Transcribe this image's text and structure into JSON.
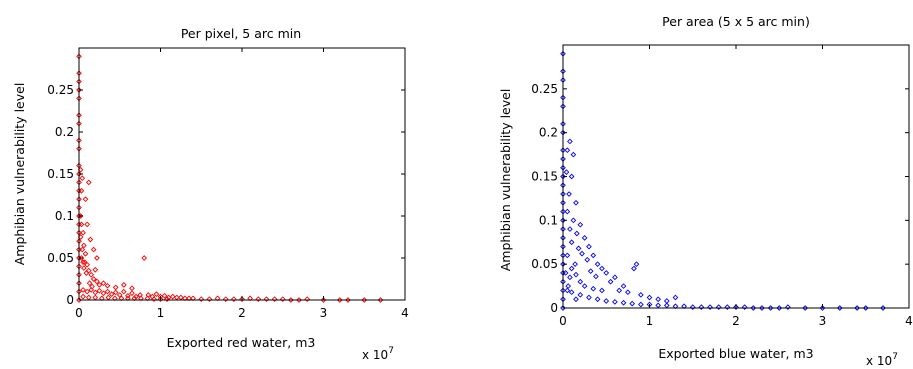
{
  "chart_data": [
    {
      "type": "scatter",
      "title": "Per pixel, 5 arc min",
      "xlabel": "Exported red water, m3",
      "ylabel": "Amphibian vulnerability level",
      "x_multiplier": "x 10",
      "x_exponent": "7",
      "xlim": [
        0,
        4
      ],
      "ylim": [
        0,
        0.3
      ],
      "xticks": [
        "0",
        "1",
        "2",
        "3",
        "4"
      ],
      "yticks": [
        "0",
        "0.05",
        "0.1",
        "0.15",
        "0.2",
        "0.25"
      ],
      "ytick_values": [
        0,
        0.05,
        0.1,
        0.15,
        0.2,
        0.25
      ],
      "marker": "diamond",
      "color": "#ff0000",
      "series": [
        {
          "points": [
            [
              0.0,
              0.29
            ],
            [
              0.0,
              0.27
            ],
            [
              0.0,
              0.26
            ],
            [
              0.0,
              0.25
            ],
            [
              0.0,
              0.24
            ],
            [
              0.0,
              0.22
            ],
            [
              0.0,
              0.21
            ],
            [
              0.0,
              0.19
            ],
            [
              0.0,
              0.18
            ],
            [
              0.0,
              0.16
            ],
            [
              0.0,
              0.15
            ],
            [
              0.0,
              0.14
            ],
            [
              0.0,
              0.13
            ],
            [
              0.0,
              0.12
            ],
            [
              0.0,
              0.11
            ],
            [
              0.0,
              0.1
            ],
            [
              0.0,
              0.09
            ],
            [
              0.0,
              0.08
            ],
            [
              0.0,
              0.07
            ],
            [
              0.0,
              0.06
            ],
            [
              0.0,
              0.05
            ],
            [
              0.0,
              0.04
            ],
            [
              0.0,
              0.03
            ],
            [
              0.0,
              0.02
            ],
            [
              0.0,
              0.01
            ],
            [
              0.0,
              0.0
            ],
            [
              0.02,
              0.155
            ],
            [
              0.03,
              0.13
            ],
            [
              0.04,
              0.145
            ],
            [
              0.02,
              0.1
            ],
            [
              0.03,
              0.09
            ],
            [
              0.05,
              0.08
            ],
            [
              0.02,
              0.075
            ],
            [
              0.06,
              0.065
            ],
            [
              0.04,
              0.06
            ],
            [
              0.08,
              0.055
            ],
            [
              0.03,
              0.05
            ],
            [
              0.05,
              0.045
            ],
            [
              0.07,
              0.045
            ],
            [
              0.1,
              0.042
            ],
            [
              0.06,
              0.038
            ],
            [
              0.12,
              0.035
            ],
            [
              0.09,
              0.032
            ],
            [
              0.15,
              0.03
            ],
            [
              0.2,
              0.036
            ],
            [
              0.18,
              0.025
            ],
            [
              0.22,
              0.022
            ],
            [
              0.13,
              0.02
            ],
            [
              0.25,
              0.018
            ],
            [
              0.3,
              0.02
            ],
            [
              0.16,
              0.016
            ],
            [
              0.35,
              0.017
            ],
            [
              0.12,
              0.14
            ],
            [
              0.08,
              0.12
            ],
            [
              0.1,
              0.09
            ],
            [
              0.14,
              0.072
            ],
            [
              0.18,
              0.06
            ],
            [
              0.22,
              0.05
            ],
            [
              0.05,
              0.012
            ],
            [
              0.1,
              0.01
            ],
            [
              0.15,
              0.012
            ],
            [
              0.2,
              0.009
            ],
            [
              0.25,
              0.011
            ],
            [
              0.3,
              0.008
            ],
            [
              0.35,
              0.01
            ],
            [
              0.4,
              0.007
            ],
            [
              0.45,
              0.009
            ],
            [
              0.5,
              0.006
            ],
            [
              0.55,
              0.01
            ],
            [
              0.6,
              0.005
            ],
            [
              0.65,
              0.008
            ],
            [
              0.7,
              0.004
            ],
            [
              0.75,
              0.006
            ],
            [
              0.8,
              0.05
            ],
            [
              0.85,
              0.006
            ],
            [
              0.9,
              0.004
            ],
            [
              0.95,
              0.007
            ],
            [
              1.0,
              0.004
            ],
            [
              1.05,
              0.005
            ],
            [
              1.1,
              0.003
            ],
            [
              1.15,
              0.004
            ],
            [
              1.2,
              0.003
            ],
            [
              1.25,
              0.003
            ],
            [
              1.3,
              0.002
            ],
            [
              1.35,
              0.002
            ],
            [
              1.4,
              0.002
            ],
            [
              0.55,
              0.018
            ],
            [
              0.45,
              0.015
            ],
            [
              0.65,
              0.014
            ],
            [
              0.05,
              0.004
            ],
            [
              0.12,
              0.003
            ],
            [
              0.2,
              0.003
            ],
            [
              0.28,
              0.002
            ],
            [
              0.36,
              0.003
            ],
            [
              0.44,
              0.002
            ],
            [
              0.52,
              0.002
            ],
            [
              0.6,
              0.002
            ],
            [
              0.68,
              0.002
            ],
            [
              0.76,
              0.002
            ],
            [
              0.84,
              0.002
            ],
            [
              0.92,
              0.001
            ],
            [
              1.0,
              0.001
            ],
            [
              1.08,
              0.001
            ],
            [
              1.5,
              0.001
            ],
            [
              1.6,
              0.001
            ],
            [
              1.7,
              0.002
            ],
            [
              1.8,
              0.001
            ],
            [
              1.9,
              0.001
            ],
            [
              2.0,
              0.001
            ],
            [
              2.1,
              0.002
            ],
            [
              2.2,
              0.001
            ],
            [
              2.3,
              0.001
            ],
            [
              2.4,
              0.001
            ],
            [
              2.5,
              0.001
            ],
            [
              2.6,
              0.0
            ],
            [
              2.7,
              0.0
            ],
            [
              2.8,
              0.001
            ],
            [
              3.0,
              0.0
            ],
            [
              3.2,
              0.0
            ],
            [
              3.3,
              0.0
            ],
            [
              3.5,
              0.0
            ],
            [
              3.7,
              0.0
            ]
          ]
        }
      ]
    },
    {
      "type": "scatter",
      "title": "Per area (5 x 5 arc min)",
      "xlabel": "Exported blue water, m3",
      "ylabel": "Amphibian vulnerability level",
      "x_multiplier": "x 10",
      "x_exponent": "7",
      "xlim": [
        0,
        4
      ],
      "ylim": [
        0,
        0.3
      ],
      "xticks": [
        "0",
        "1",
        "2",
        "3",
        "4"
      ],
      "yticks": [
        "0",
        "0.05",
        "0.1",
        "0.15",
        "0.2",
        "0.25"
      ],
      "ytick_values": [
        0,
        0.05,
        0.1,
        0.15,
        0.2,
        0.25
      ],
      "marker": "diamond",
      "color": "#0000ff",
      "series": [
        {
          "points": [
            [
              0.0,
              0.29
            ],
            [
              0.0,
              0.27
            ],
            [
              0.0,
              0.26
            ],
            [
              0.0,
              0.24
            ],
            [
              0.0,
              0.23
            ],
            [
              0.0,
              0.21
            ],
            [
              0.0,
              0.2
            ],
            [
              0.0,
              0.18
            ],
            [
              0.0,
              0.17
            ],
            [
              0.0,
              0.16
            ],
            [
              0.0,
              0.15
            ],
            [
              0.0,
              0.14
            ],
            [
              0.0,
              0.13
            ],
            [
              0.0,
              0.12
            ],
            [
              0.0,
              0.11
            ],
            [
              0.0,
              0.1
            ],
            [
              0.0,
              0.09
            ],
            [
              0.0,
              0.08
            ],
            [
              0.0,
              0.07
            ],
            [
              0.0,
              0.06
            ],
            [
              0.0,
              0.05
            ],
            [
              0.0,
              0.04
            ],
            [
              0.0,
              0.03
            ],
            [
              0.0,
              0.02
            ],
            [
              0.0,
              0.01
            ],
            [
              0.0,
              0.0
            ],
            [
              0.08,
              0.19
            ],
            [
              0.12,
              0.175
            ],
            [
              0.05,
              0.18
            ],
            [
              0.04,
              0.155
            ],
            [
              0.1,
              0.15
            ],
            [
              0.07,
              0.13
            ],
            [
              0.15,
              0.12
            ],
            [
              0.05,
              0.11
            ],
            [
              0.12,
              0.1
            ],
            [
              0.2,
              0.095
            ],
            [
              0.08,
              0.09
            ],
            [
              0.16,
              0.085
            ],
            [
              0.25,
              0.08
            ],
            [
              0.1,
              0.075
            ],
            [
              0.3,
              0.07
            ],
            [
              0.18,
              0.068
            ],
            [
              0.22,
              0.062
            ],
            [
              0.35,
              0.06
            ],
            [
              0.28,
              0.055
            ],
            [
              0.4,
              0.05
            ],
            [
              0.14,
              0.05
            ],
            [
              0.45,
              0.045
            ],
            [
              0.32,
              0.042
            ],
            [
              0.5,
              0.04
            ],
            [
              0.38,
              0.036
            ],
            [
              0.6,
              0.035
            ],
            [
              0.55,
              0.03
            ],
            [
              0.7,
              0.025
            ],
            [
              0.85,
              0.05
            ],
            [
              0.82,
              0.045
            ],
            [
              0.65,
              0.02
            ],
            [
              0.75,
              0.018
            ],
            [
              0.9,
              0.015
            ],
            [
              1.0,
              0.012
            ],
            [
              1.1,
              0.01
            ],
            [
              1.2,
              0.008
            ],
            [
              1.3,
              0.012
            ],
            [
              0.2,
              0.03
            ],
            [
              0.15,
              0.038
            ],
            [
              0.25,
              0.025
            ],
            [
              0.35,
              0.022
            ],
            [
              0.45,
              0.02
            ],
            [
              0.05,
              0.06
            ],
            [
              0.1,
              0.045
            ],
            [
              0.08,
              0.035
            ],
            [
              0.2,
              0.015
            ],
            [
              0.3,
              0.012
            ],
            [
              0.4,
              0.01
            ],
            [
              0.5,
              0.008
            ],
            [
              0.6,
              0.007
            ],
            [
              0.7,
              0.006
            ],
            [
              0.8,
              0.005
            ],
            [
              0.9,
              0.004
            ],
            [
              1.0,
              0.004
            ],
            [
              1.1,
              0.003
            ],
            [
              1.2,
              0.003
            ],
            [
              0.05,
              0.02
            ],
            [
              0.1,
              0.018
            ],
            [
              0.15,
              0.01
            ],
            [
              0.03,
              0.04
            ],
            [
              0.06,
              0.025
            ],
            [
              1.3,
              0.002
            ],
            [
              1.4,
              0.002
            ],
            [
              1.5,
              0.001
            ],
            [
              1.6,
              0.001
            ],
            [
              1.7,
              0.001
            ],
            [
              1.8,
              0.001
            ],
            [
              1.9,
              0.001
            ],
            [
              2.0,
              0.001
            ],
            [
              2.1,
              0.001
            ],
            [
              2.2,
              0.0
            ],
            [
              2.3,
              0.0
            ],
            [
              2.4,
              0.0
            ],
            [
              2.5,
              0.0
            ],
            [
              2.6,
              0.001
            ],
            [
              2.8,
              0.0
            ],
            [
              3.0,
              0.0
            ],
            [
              3.2,
              0.0
            ],
            [
              3.4,
              0.0
            ],
            [
              3.5,
              0.0
            ],
            [
              3.7,
              0.0
            ]
          ]
        }
      ]
    }
  ]
}
